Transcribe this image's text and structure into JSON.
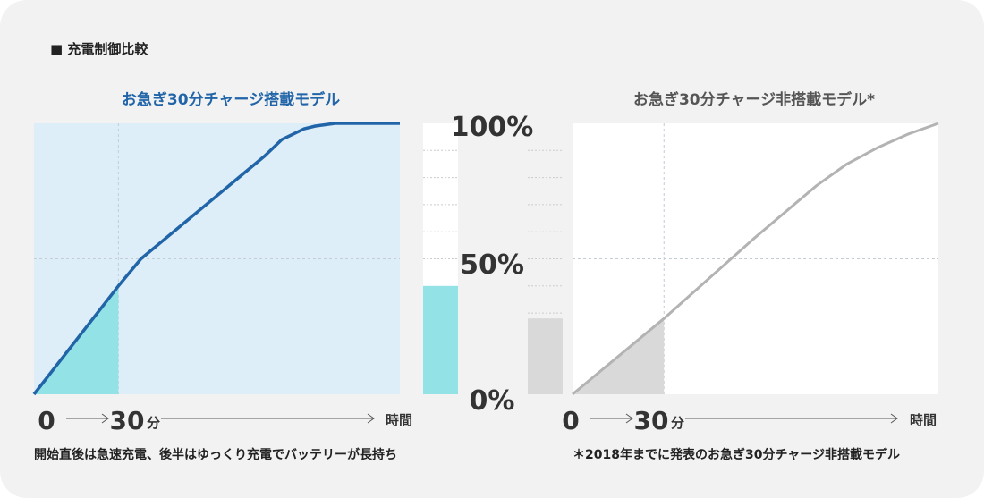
{
  "heading": "■ 充電制御比較",
  "colors": {
    "card_bg": "#f2f2f2",
    "left_panel_bg": "#deeef8",
    "left_line": "#2165a8",
    "left_fill": "#93e2e6",
    "right_panel_bg": "#ffffff",
    "right_line": "#b3b3b3",
    "right_fill": "#d9d9d9",
    "gridline": "#c4ccd4",
    "axis_text": "#333333"
  },
  "chart_data": [
    {
      "type": "line",
      "title": "お急ぎ30分チャージ搭載モデル",
      "x_unit": "分",
      "xlabel": "時間",
      "x_ticks": [
        "0",
        "30"
      ],
      "x_range": [
        0,
        130
      ],
      "y_ticks": [
        "0%",
        "50%",
        "100%"
      ],
      "ylim": [
        0,
        100
      ],
      "series": [
        {
          "x": [
            0,
            30,
            38,
            82,
            88,
            96,
            100,
            107,
            130
          ],
          "y": [
            0,
            40,
            50,
            88,
            94,
            98,
            99,
            100,
            100
          ]
        }
      ],
      "level_at_30_min": 40,
      "caption": "開始直後は急速充電、後半はゆっくり充電でバッテリーが長持ち"
    },
    {
      "type": "line",
      "title": "お急ぎ30分チャージ非搭載モデル*",
      "x_unit": "分",
      "xlabel": "時間",
      "x_ticks": [
        "0",
        "30"
      ],
      "x_range": [
        0,
        120
      ],
      "y_ticks": [
        "0%",
        "50%",
        "100%"
      ],
      "ylim": [
        0,
        100
      ],
      "series": [
        {
          "x": [
            0,
            30,
            60,
            80,
            90,
            100,
            110,
            120
          ],
          "y": [
            0,
            28,
            58,
            77,
            85,
            91,
            96,
            100
          ]
        }
      ],
      "level_at_30_min": 28,
      "caption": "＊2018年までに発表のお急ぎ30分チャージ非搭載モデル"
    }
  ]
}
